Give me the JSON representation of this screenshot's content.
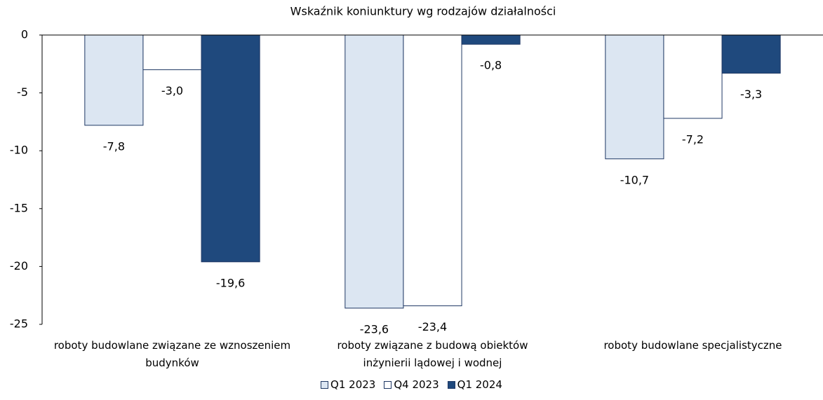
{
  "chart_data": {
    "type": "bar",
    "title": "Wskaźnik koniunktury wg rodzajów działalności",
    "categories": [
      "roboty budowlane związane ze wznoszeniem budynków",
      "roboty związane z budową obiektów inżynierii lądowej i wodnej",
      "roboty budowlane specjalistyczne"
    ],
    "series": [
      {
        "name": "Q1 2023",
        "color": "#dce6f2",
        "values": [
          -7.8,
          -23.6,
          -10.7
        ],
        "value_labels": [
          "-7,8",
          "-23,6",
          "-10,7"
        ]
      },
      {
        "name": "Q4 2023",
        "color": "#ffffff",
        "values": [
          -3.0,
          -23.4,
          -7.2
        ],
        "value_labels": [
          "-3,0",
          "-23,4",
          "-7,2"
        ]
      },
      {
        "name": "Q1 2024",
        "color": "#1f497d",
        "values": [
          -19.6,
          -0.8,
          -3.3
        ],
        "value_labels": [
          "-19,6",
          "-0,8",
          "-3,3"
        ]
      }
    ],
    "ylim": [
      -25,
      0
    ],
    "yticks": [
      0,
      -5,
      -10,
      -15,
      -20,
      -25
    ],
    "grid": false
  }
}
